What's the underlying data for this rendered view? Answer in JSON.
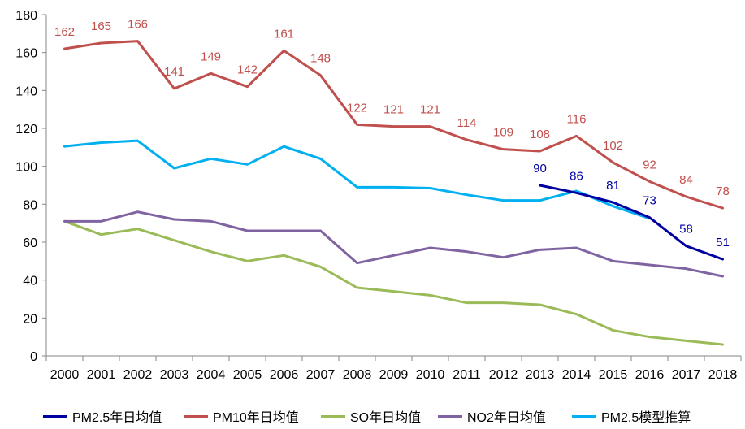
{
  "chart_data": {
    "type": "line",
    "title": "",
    "xlabel": "",
    "ylabel": "",
    "categories": [
      "2000",
      "2001",
      "2002",
      "2003",
      "2004",
      "2005",
      "2006",
      "2007",
      "2008",
      "2009",
      "2010",
      "2011",
      "2012",
      "2013",
      "2014",
      "2015",
      "2016",
      "2017",
      "2018"
    ],
    "ylim": [
      0,
      180
    ],
    "yticks": [
      0,
      20,
      40,
      60,
      80,
      100,
      120,
      140,
      160,
      180
    ],
    "grid": false,
    "legend_position": "bottom",
    "series": [
      {
        "name": "PM2.5年日均值",
        "color": "#0000A0",
        "values": [
          null,
          null,
          null,
          null,
          null,
          null,
          null,
          null,
          null,
          null,
          null,
          null,
          null,
          90,
          86,
          81,
          73,
          58,
          51
        ],
        "labels": [
          "",
          "",
          "",
          "",
          "",
          "",
          "",
          "",
          "",
          "",
          "",
          "",
          "",
          "90",
          "86",
          "81",
          "73",
          "58",
          "51"
        ]
      },
      {
        "name": "PM10年日均值",
        "color": "#C0504D",
        "values": [
          162,
          165,
          166,
          141,
          149,
          142,
          161,
          148,
          122,
          121,
          121,
          114,
          109,
          108,
          116,
          102,
          92,
          84,
          78
        ],
        "labels": [
          "162",
          "165",
          "166",
          "141",
          "149",
          "142",
          "161",
          "148",
          "122",
          "121",
          "121",
          "114",
          "109",
          "108",
          "116",
          "102",
          "92",
          "84",
          "78"
        ]
      },
      {
        "name": "SO年日均值",
        "color": "#9BBB59",
        "values": [
          71,
          64,
          67,
          61,
          55,
          50,
          53,
          47,
          36,
          34,
          32,
          28,
          28,
          27,
          22,
          13.5,
          10,
          8,
          6
        ],
        "labels": []
      },
      {
        "name": "NO2年日均值",
        "color": "#8064A2",
        "values": [
          71,
          71,
          76,
          72,
          71,
          66,
          66,
          66,
          49,
          53,
          57,
          55,
          52,
          56,
          57,
          50,
          48,
          46,
          42
        ],
        "labels": []
      },
      {
        "name": "PM2.5模型推算",
        "color": "#00B0F0",
        "values": [
          110.5,
          112.5,
          113.5,
          99,
          104,
          101,
          110.5,
          104,
          89,
          89,
          88.5,
          85,
          82,
          82,
          87,
          79,
          72.5,
          null,
          null
        ],
        "labels": []
      }
    ]
  }
}
